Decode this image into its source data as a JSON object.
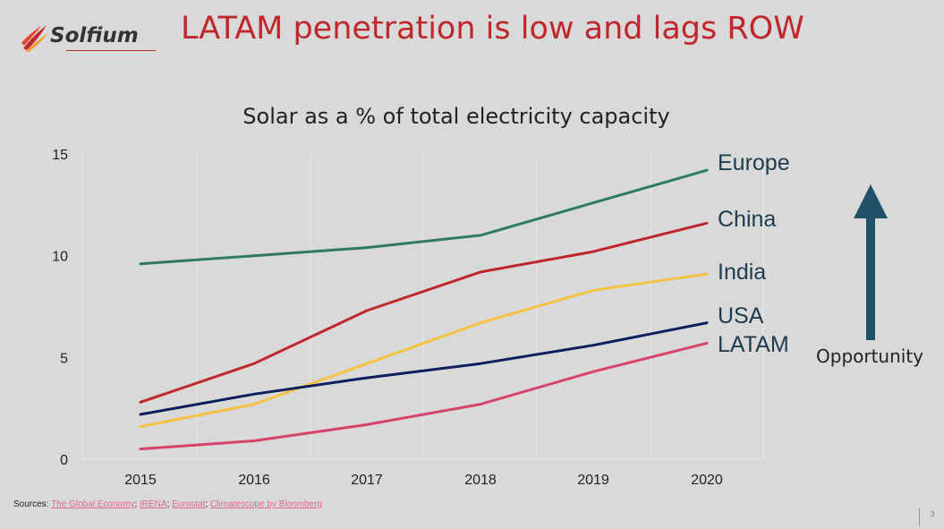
{
  "header": {
    "logo_text": "Solfium",
    "title": "LATAM penetration is low and lags ROW"
  },
  "colors": {
    "title_red": "#c0272d",
    "Europe": "#2e7a62",
    "China": "#c0272d",
    "India": "#f5c242",
    "USA": "#0b1f5e",
    "LATAM": "#d6436b",
    "arrow": "#1f5068"
  },
  "chart_data": {
    "type": "line",
    "title": "Solar as a % of total electricity capacity",
    "x": [
      "2015",
      "2016",
      "2017",
      "2018",
      "2019",
      "2020"
    ],
    "ylim": [
      0,
      15
    ],
    "yticks": [
      0,
      5,
      10,
      15
    ],
    "grid": "vertical",
    "series": [
      {
        "name": "Europe",
        "values": [
          9.6,
          10.0,
          10.4,
          11.0,
          12.6,
          14.2
        ]
      },
      {
        "name": "China",
        "values": [
          2.8,
          4.7,
          7.3,
          9.2,
          10.2,
          11.6
        ]
      },
      {
        "name": "India",
        "values": [
          1.6,
          2.7,
          4.7,
          6.7,
          8.3,
          9.1
        ]
      },
      {
        "name": "USA",
        "values": [
          2.2,
          3.2,
          4.0,
          4.7,
          5.6,
          6.7
        ]
      },
      {
        "name": "LATAM",
        "values": [
          0.5,
          0.9,
          1.7,
          2.7,
          4.3,
          5.7
        ]
      }
    ]
  },
  "annotation": {
    "opportunity": "Opportunity"
  },
  "footer": {
    "sources_label": "Sources: ",
    "sources": [
      "The Global Economy",
      "IRENA",
      "Eurostat",
      "Climatescope by Bloomberg"
    ],
    "page_number": "3"
  }
}
